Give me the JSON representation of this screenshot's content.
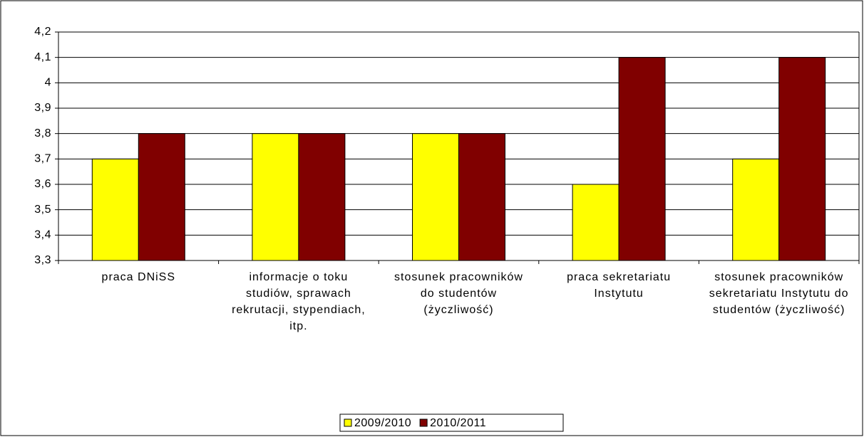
{
  "chart_data": {
    "type": "bar",
    "categories": [
      "praca DNiSS",
      "informacje o toku studiów, sprawach rekrutacji, stypendiach, itp.",
      "stosunek pracowników do studentów (życzliwość)",
      "praca sekretariatu Instytutu",
      "stosunek pracowników sekretariatu Instytutu do studentów (życzliwość)"
    ],
    "series": [
      {
        "name": "2009/2010",
        "color": "#ffff00",
        "values": [
          3.7,
          3.8,
          3.8,
          3.6,
          3.7
        ]
      },
      {
        "name": "2010/2011",
        "color": "#800000",
        "values": [
          3.8,
          3.8,
          3.8,
          4.1,
          4.1
        ]
      }
    ],
    "ylim": [
      3.3,
      4.2
    ],
    "yticks": [
      {
        "value": 3.3,
        "label": "3,3"
      },
      {
        "value": 3.4,
        "label": "3,4"
      },
      {
        "value": 3.5,
        "label": "3,5"
      },
      {
        "value": 3.6,
        "label": "3,6"
      },
      {
        "value": 3.7,
        "label": "3,7"
      },
      {
        "value": 3.8,
        "label": "3,8"
      },
      {
        "value": 3.9,
        "label": "3,9"
      },
      4,
      {
        "value": 4.1,
        "label": "4,1"
      },
      {
        "value": 4.2,
        "label": "4,2"
      }
    ],
    "grid": true,
    "legend": "bottom"
  }
}
